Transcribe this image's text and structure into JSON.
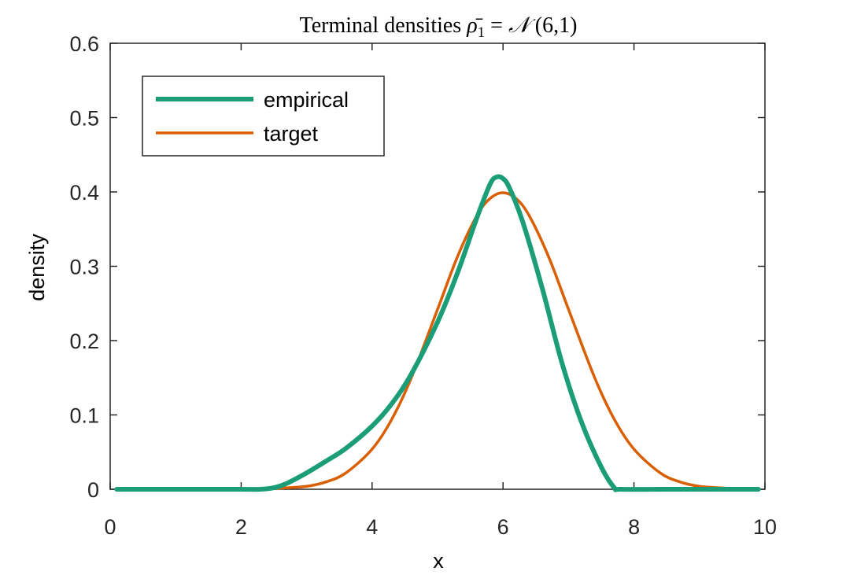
{
  "chart_data": {
    "type": "line",
    "title_parts": {
      "prefix": "Terminal densities ",
      "rho": "ρ̄",
      "subscript": "1",
      "equals": " = ",
      "normal": "𝒩",
      "args": " (6,1)"
    },
    "xlabel": "x",
    "ylabel": "density",
    "xlim": [
      0,
      10
    ],
    "ylim": [
      0,
      0.6
    ],
    "x_ticks": [
      0,
      2,
      4,
      6,
      8,
      10
    ],
    "x_tick_labels": [
      "0",
      "2",
      "4",
      "6",
      "8",
      "10"
    ],
    "y_ticks": [
      0,
      0.1,
      0.2,
      0.3,
      0.4,
      0.5,
      0.6
    ],
    "y_tick_labels": [
      "0",
      "0.1",
      "0.2",
      "0.3",
      "0.4",
      "0.5",
      "0.6"
    ],
    "grid": false,
    "legend_position": "top-left",
    "series": [
      {
        "name": "empirical",
        "color": "#1b9e77",
        "line": "thick",
        "points": [
          [
            0.1,
            0.0
          ],
          [
            1.0,
            0.0
          ],
          [
            2.0,
            0.0
          ],
          [
            2.3,
            0.0
          ],
          [
            2.5,
            0.002
          ],
          [
            2.7,
            0.008
          ],
          [
            3.0,
            0.022
          ],
          [
            3.3,
            0.038
          ],
          [
            3.6,
            0.055
          ],
          [
            4.0,
            0.085
          ],
          [
            4.3,
            0.115
          ],
          [
            4.6,
            0.155
          ],
          [
            5.0,
            0.225
          ],
          [
            5.3,
            0.29
          ],
          [
            5.6,
            0.365
          ],
          [
            5.8,
            0.41
          ],
          [
            5.9,
            0.42
          ],
          [
            6.0,
            0.418
          ],
          [
            6.1,
            0.405
          ],
          [
            6.3,
            0.36
          ],
          [
            6.6,
            0.27
          ],
          [
            6.9,
            0.17
          ],
          [
            7.2,
            0.09
          ],
          [
            7.5,
            0.03
          ],
          [
            7.7,
            0.002
          ],
          [
            7.8,
            0.0
          ],
          [
            8.5,
            0.0
          ],
          [
            9.9,
            0.0
          ]
        ]
      },
      {
        "name": "target",
        "color": "#d95f02",
        "line": "thin",
        "points": [
          [
            0.1,
            0.0
          ],
          [
            1.0,
            0.0
          ],
          [
            2.0,
            0.0
          ],
          [
            2.5,
            0.001
          ],
          [
            3.0,
            0.004
          ],
          [
            3.3,
            0.01
          ],
          [
            3.6,
            0.022
          ],
          [
            4.0,
            0.054
          ],
          [
            4.3,
            0.094
          ],
          [
            4.6,
            0.15
          ],
          [
            5.0,
            0.242
          ],
          [
            5.3,
            0.312
          ],
          [
            5.6,
            0.368
          ],
          [
            5.8,
            0.391
          ],
          [
            6.0,
            0.399
          ],
          [
            6.2,
            0.391
          ],
          [
            6.4,
            0.368
          ],
          [
            6.7,
            0.312
          ],
          [
            7.0,
            0.242
          ],
          [
            7.4,
            0.15
          ],
          [
            7.7,
            0.094
          ],
          [
            8.0,
            0.054
          ],
          [
            8.4,
            0.022
          ],
          [
            8.7,
            0.01
          ],
          [
            9.0,
            0.004
          ],
          [
            9.5,
            0.001
          ],
          [
            9.9,
            0.0
          ]
        ]
      }
    ]
  }
}
